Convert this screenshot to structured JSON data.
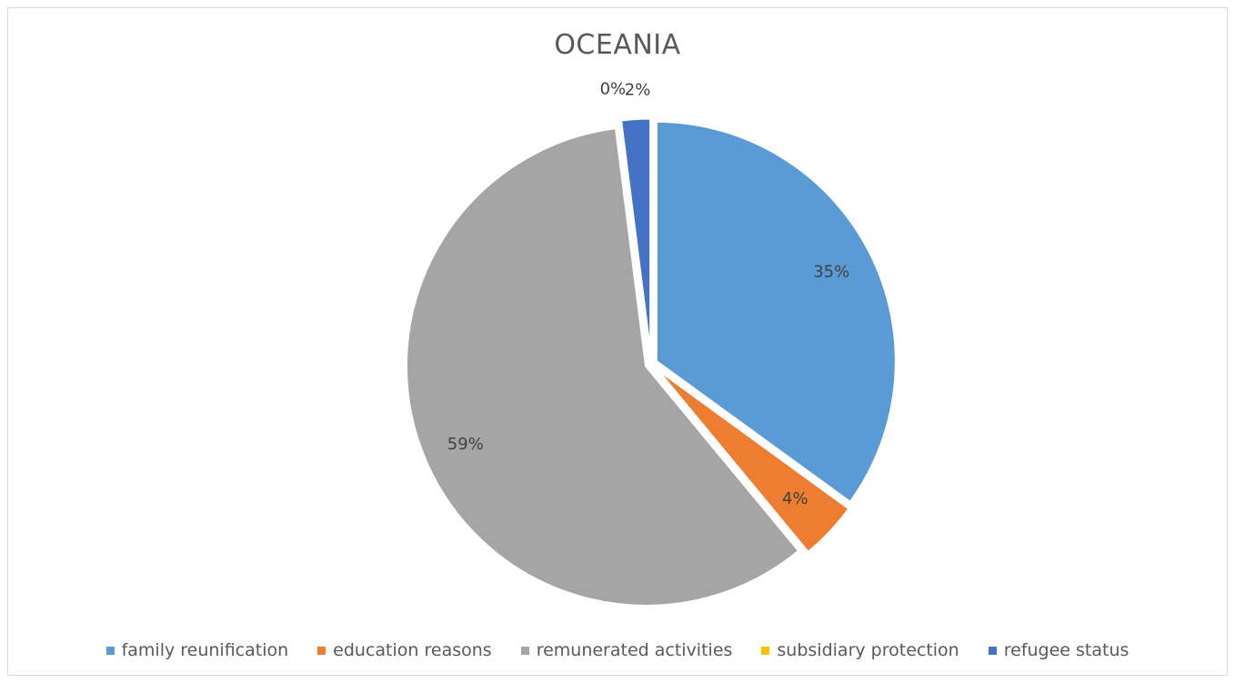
{
  "chart_data": {
    "type": "pie",
    "title": "OCEANIA",
    "categories": [
      "family reunification",
      "education reasons",
      "remunerated activities",
      "subsidiary protection",
      "refugee status"
    ],
    "values": [
      35,
      4,
      59,
      0,
      2
    ],
    "data_labels": [
      "35%",
      "4%",
      "59%",
      "0%",
      "2%"
    ],
    "colors": [
      "#5b9bd5",
      "#ed7d31",
      "#a5a5a5",
      "#ffc000",
      "#4472c4"
    ],
    "legend_position": "bottom",
    "exploded": true
  }
}
